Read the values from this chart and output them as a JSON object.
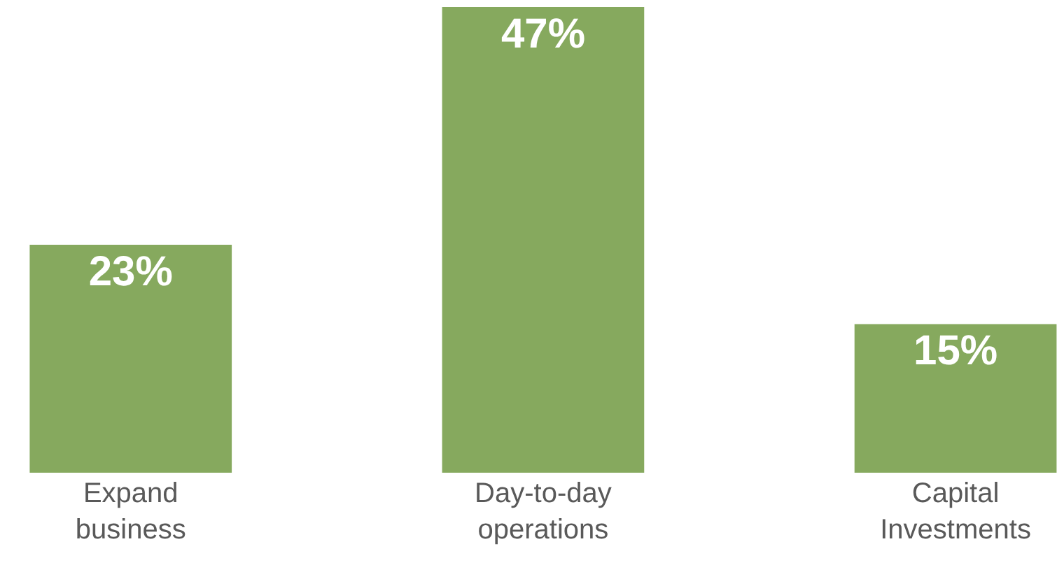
{
  "chart_data": {
    "type": "bar",
    "categories": [
      "Expand business",
      "Day-to-day operations",
      "Capital Investments"
    ],
    "values": [
      23,
      47,
      15
    ],
    "value_labels": [
      "23%",
      "47%",
      "15%"
    ],
    "color": "#86a95e"
  }
}
